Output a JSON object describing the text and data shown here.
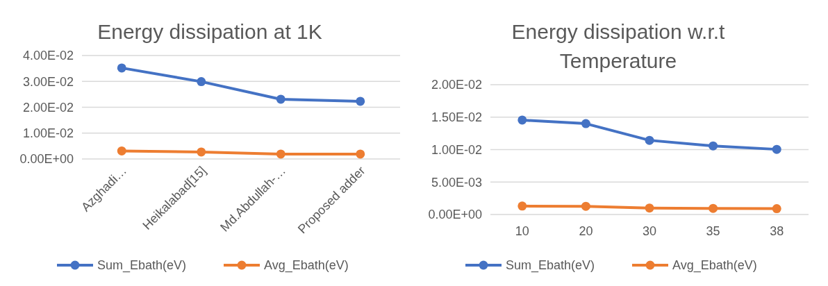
{
  "chart_data": [
    {
      "type": "line",
      "title": "Energy dissipation at 1K",
      "categories": [
        "Azghadi…",
        "Heikalabad[15]",
        "Md.Abdullah-…",
        "Proposed adder"
      ],
      "series": [
        {
          "name": "Sum_Ebath(eV)",
          "color": "#4472c4",
          "values": [
            0.0352,
            0.0299,
            0.0231,
            0.0223
          ]
        },
        {
          "name": "Avg_Ebath(eV)",
          "color": "#ed7d31",
          "values": [
            0.0031,
            0.0027,
            0.0019,
            0.0019
          ]
        }
      ],
      "ylim": [
        0,
        0.04
      ],
      "yticks": [
        {
          "value": 0,
          "label": "0.00E+00"
        },
        {
          "value": 0.01,
          "label": "1.00E-02"
        },
        {
          "value": 0.02,
          "label": "2.00E-02"
        },
        {
          "value": 0.03,
          "label": "3.00E-02"
        },
        {
          "value": 0.04,
          "label": "4.00E-02"
        }
      ],
      "grid": "y",
      "legend": "bottom",
      "marker": "circle"
    },
    {
      "type": "line",
      "title": "Energy dissipation w.r.t Temperature",
      "categories": [
        "10",
        "20",
        "30",
        "35",
        "38"
      ],
      "series": [
        {
          "name": "Sum_Ebath(eV)",
          "color": "#4472c4",
          "values": [
            0.01455,
            0.014,
            0.01143,
            0.01057,
            0.01004
          ]
        },
        {
          "name": "Avg_Ebath(eV)",
          "color": "#ed7d31",
          "values": [
            0.0013,
            0.00127,
            0.001,
            0.00094,
            0.0009
          ]
        }
      ],
      "ylim": [
        0,
        0.02
      ],
      "yticks": [
        {
          "value": 0,
          "label": "0.00E+00"
        },
        {
          "value": 0.005,
          "label": "5.00E-03"
        },
        {
          "value": 0.01,
          "label": "1.00E-02"
        },
        {
          "value": 0.015,
          "label": "1.50E-02"
        },
        {
          "value": 0.02,
          "label": "2.00E-02"
        }
      ],
      "grid": "y",
      "legend": "bottom",
      "marker": "circle"
    }
  ]
}
